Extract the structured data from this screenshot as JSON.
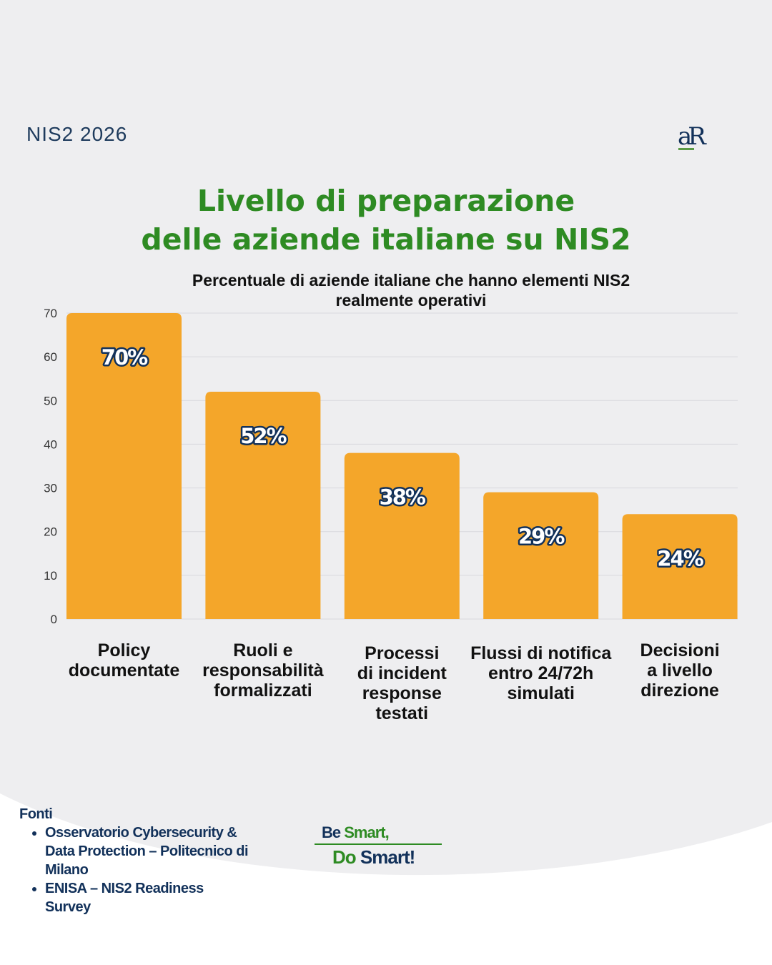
{
  "header": {
    "tag": "NIS2 2026",
    "logo_text": "aR"
  },
  "title_lines": [
    "Livello di preparazione",
    "delle aziende italiane su NIS2"
  ],
  "colors": {
    "bar": "#f4a62a",
    "title": "#2e8b23",
    "navy": "#12315a",
    "background": "#eeeef0"
  },
  "chart_data": {
    "type": "bar",
    "title": "Percentuale di aziende italiane che hanno elementi NIS2 realmente operativi",
    "title_lines": [
      "Percentuale di aziende italiane che hanno elementi NIS2",
      "realmente operativi"
    ],
    "categories": [
      [
        "Policy",
        "documentate"
      ],
      [
        "Ruoli e",
        "responsabilità",
        "formalizzati"
      ],
      [
        "Processi",
        "di incident",
        "response",
        "testati"
      ],
      [
        "Flussi di notifica",
        "entro 24/72h",
        "simulati"
      ],
      [
        "Decisioni",
        "a livello",
        "direzione"
      ]
    ],
    "values": [
      70,
      52,
      38,
      29,
      24
    ],
    "data_labels": [
      "70%",
      "52%",
      "38%",
      "29%",
      "24%"
    ],
    "ylim": [
      0,
      70
    ],
    "yticks": [
      0,
      10,
      20,
      30,
      40,
      50,
      60,
      70
    ],
    "grid": true,
    "xlabel": "",
    "ylabel": ""
  },
  "footer": {
    "sources_title": "Fonti",
    "sources": [
      "Osservatorio Cybersecurity & Data Protection – Politecnico di Milano",
      "ENISA – NIS2 Readiness Survey"
    ],
    "slogan": {
      "be": "Be",
      "smart1": "Smart,",
      "do": "Do",
      "smart2": "Smart!"
    }
  }
}
